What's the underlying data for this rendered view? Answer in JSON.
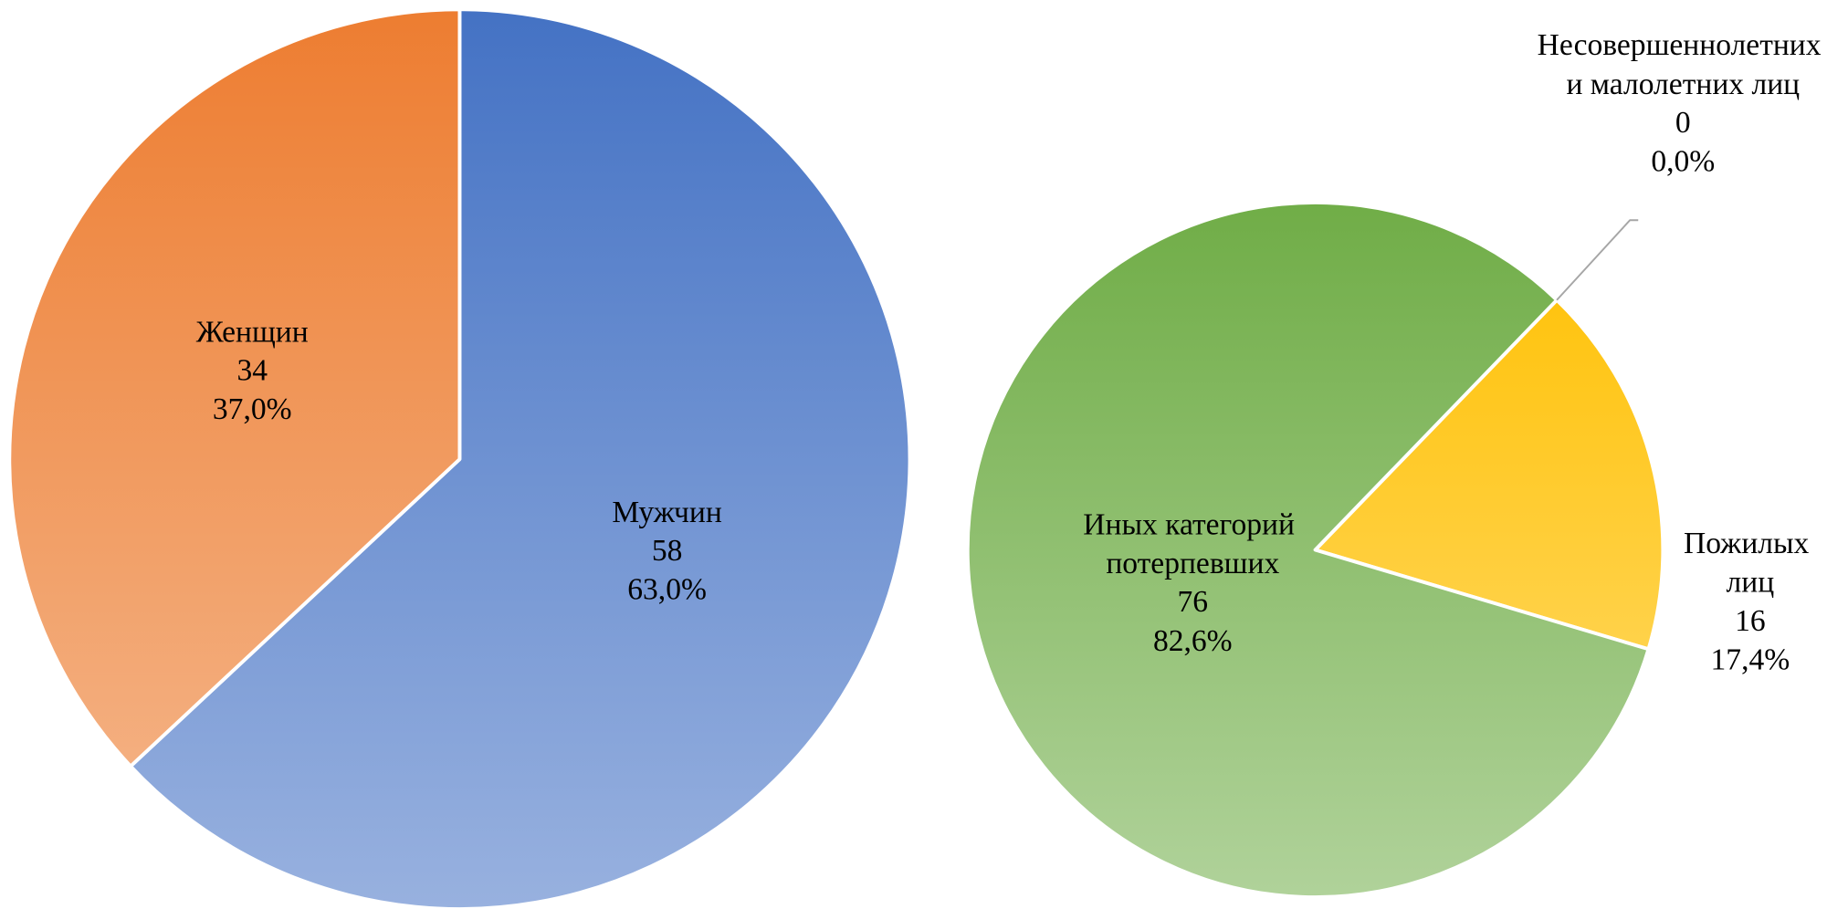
{
  "chart_data": [
    {
      "type": "pie",
      "categories": [
        "Мужчин",
        "Женщин"
      ],
      "values": [
        58,
        34
      ],
      "percent_labels": [
        "63,0%",
        "37,0%"
      ],
      "colors": [
        "#4472c4",
        "#ed7d31"
      ]
    },
    {
      "type": "pie",
      "categories": [
        "Несовершеннолетних и малолетних лиц",
        "Пожилых лиц",
        "Иных категорий потерпевших"
      ],
      "values": [
        0,
        16,
        76
      ],
      "percent_labels": [
        "0,0%",
        "17,4%",
        "82,6%"
      ],
      "colors": [
        "#a5a5a5",
        "#ffc000",
        "#70ad47"
      ]
    }
  ]
}
